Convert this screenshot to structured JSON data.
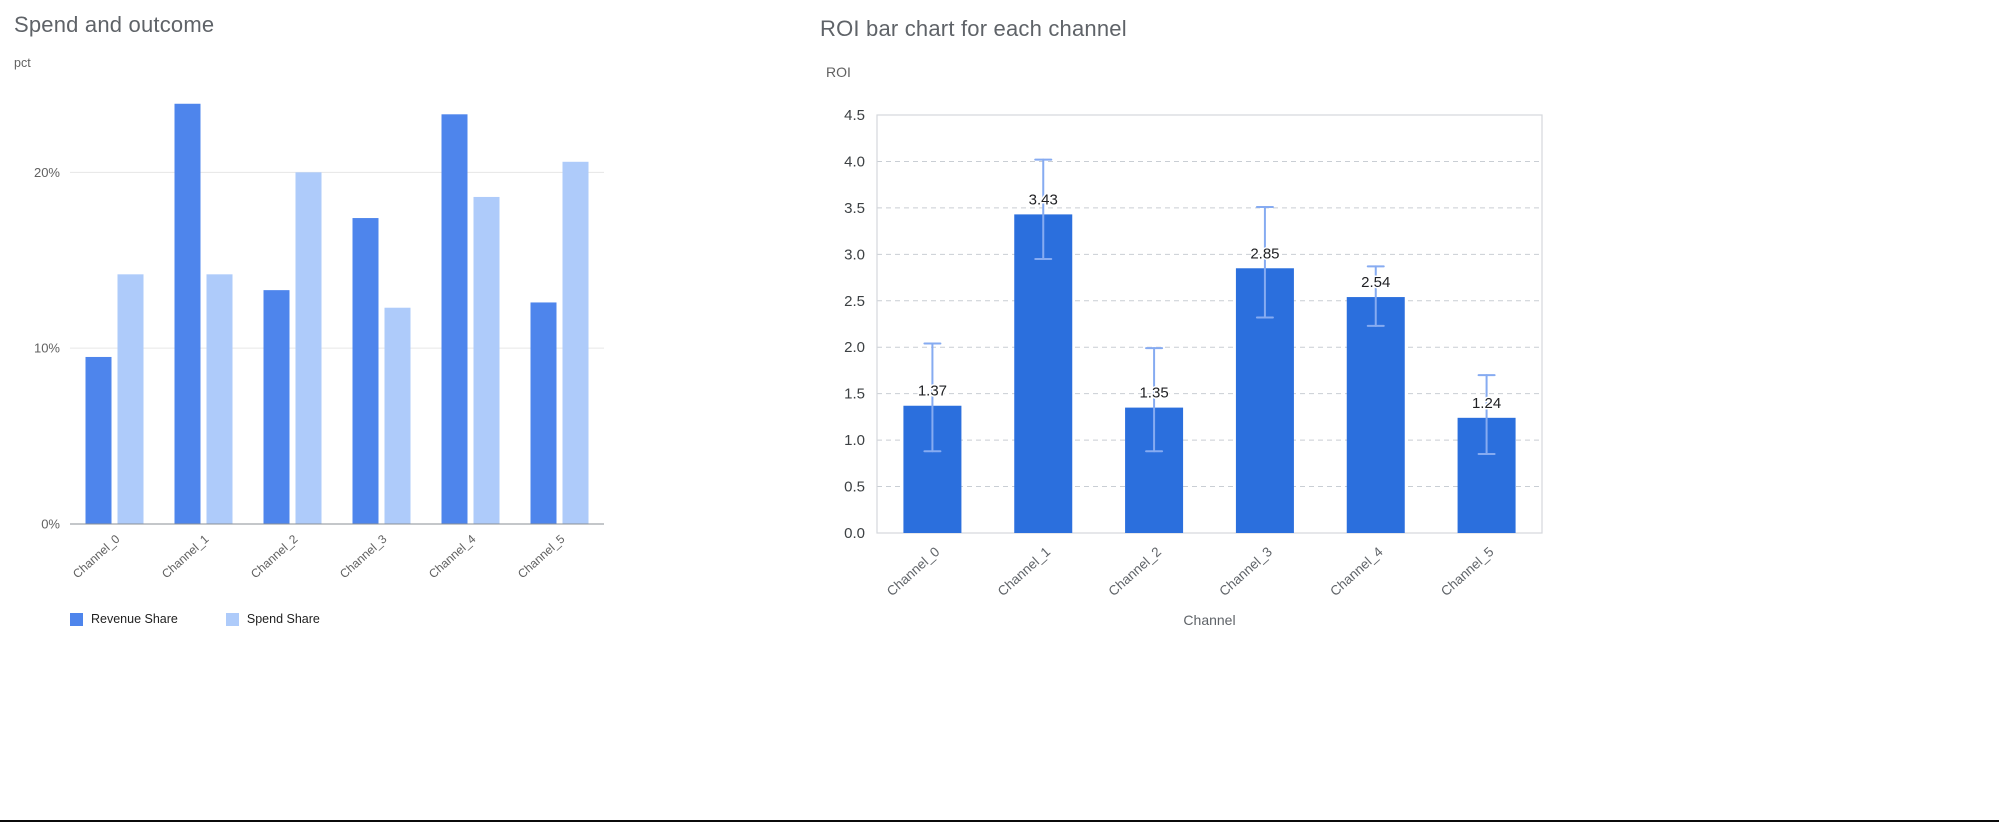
{
  "window": {
    "background": "#ffffff",
    "bottom_rule_color": "#0b0b0b"
  },
  "chart_data": [
    {
      "name": "spend-and-outcome",
      "type": "bar",
      "title": "Spend and outcome",
      "ylabel": "pct",
      "xlabel": "",
      "categories": [
        "Channel_0",
        "Channel_1",
        "Channel_2",
        "Channel_3",
        "Channel_4",
        "Channel_5"
      ],
      "series": [
        {
          "name": "Revenue Share",
          "color": "#4e85ec",
          "values": [
            9.5,
            23.9,
            13.3,
            17.4,
            23.3,
            12.6
          ]
        },
        {
          "name": "Spend Share",
          "color": "#aecbfa",
          "values": [
            14.2,
            14.2,
            20.0,
            12.3,
            18.6,
            20.6
          ]
        }
      ],
      "ylim": [
        0,
        24
      ],
      "yticks": [
        0,
        10,
        20
      ],
      "ytick_labels": [
        "0%",
        "10%",
        "20%"
      ],
      "grid": "solid",
      "legend_position": "bottom"
    },
    {
      "name": "roi-by-channel",
      "type": "bar",
      "title": "ROI bar chart for each channel",
      "ylabel": "ROI",
      "xlabel": "Channel",
      "categories": [
        "Channel_0",
        "Channel_1",
        "Channel_2",
        "Channel_3",
        "Channel_4",
        "Channel_5"
      ],
      "values": [
        1.37,
        3.43,
        1.35,
        2.85,
        2.54,
        1.24
      ],
      "value_labels": [
        "1.37",
        "3.43",
        "1.35",
        "2.85",
        "2.54",
        "1.24"
      ],
      "error_upper": [
        2.04,
        4.02,
        1.99,
        3.51,
        2.87,
        1.7
      ],
      "error_lower": [
        0.88,
        2.95,
        0.88,
        2.32,
        2.23,
        0.85
      ],
      "bar_color": "#2b6fdd",
      "error_color": "#86abf1",
      "ylim": [
        0,
        4.5
      ],
      "yticks": [
        0,
        0.5,
        1.0,
        1.5,
        2.0,
        2.5,
        3.0,
        3.5,
        4.0,
        4.5
      ],
      "ytick_labels": [
        "0.0",
        "0.5",
        "1.0",
        "1.5",
        "2.0",
        "2.5",
        "3.0",
        "3.5",
        "4.0",
        "4.5"
      ],
      "grid": "dashed",
      "legend_position": "none"
    }
  ]
}
